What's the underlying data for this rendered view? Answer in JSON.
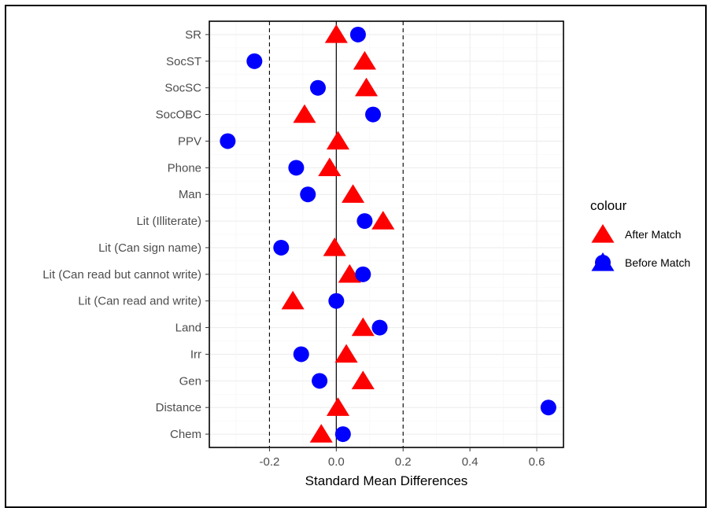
{
  "chart_data": {
    "type": "scatter",
    "title": "",
    "xlabel": "Standard Mean Differences",
    "ylabel": "",
    "xlim": [
      -0.38,
      0.68
    ],
    "xticks": [
      -0.2,
      0.0,
      0.2,
      0.4,
      0.6
    ],
    "xtick_labels": [
      "-0.2",
      "0.0",
      "0.2",
      "0.4",
      "0.6"
    ],
    "reference_lines": {
      "solid": [
        0.0
      ],
      "dashed": [
        -0.2,
        0.2
      ]
    },
    "grid": true,
    "legend_title": "colour",
    "legend_position": "right",
    "categories": [
      "SR",
      "SocST",
      "SocSC",
      "SocOBC",
      "PPV",
      "Phone",
      "Man",
      "Lit (Illiterate)",
      "Lit (Can sign name)",
      "Lit (Can read but cannot write)",
      "Lit (Can read and write)",
      "Land",
      "Irr",
      "Gen",
      "Distance",
      "Chem"
    ],
    "series": [
      {
        "name": "After Match",
        "marker": "triangle",
        "color": "#ff0000",
        "values": [
          0.0,
          0.085,
          0.09,
          -0.095,
          0.005,
          -0.02,
          0.05,
          0.14,
          -0.005,
          0.04,
          -0.13,
          0.08,
          0.03,
          0.08,
          0.005,
          -0.045
        ]
      },
      {
        "name": "Before Match",
        "marker": "circle",
        "color": "#0000ff",
        "values": [
          0.065,
          -0.245,
          -0.055,
          0.11,
          -0.325,
          -0.12,
          -0.085,
          0.085,
          -0.165,
          0.08,
          0.0,
          0.13,
          -0.105,
          -0.05,
          0.635,
          0.02
        ]
      }
    ]
  }
}
